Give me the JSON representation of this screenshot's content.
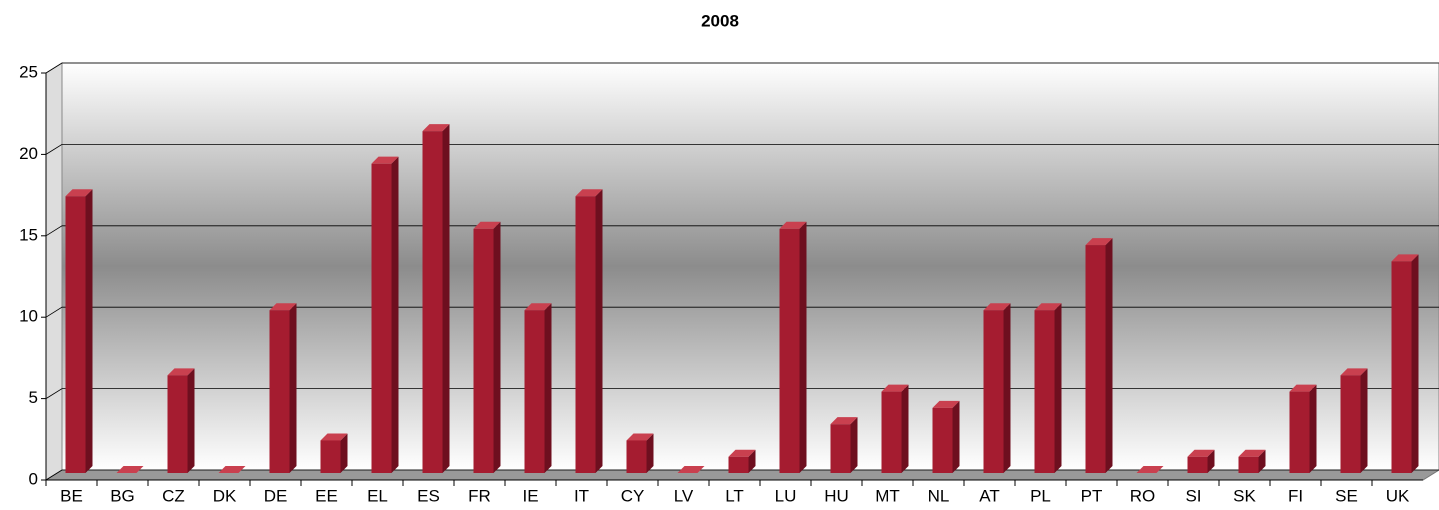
{
  "chart_data": {
    "type": "bar",
    "title": "2008",
    "categories": [
      "BE",
      "BG",
      "CZ",
      "DK",
      "DE",
      "EE",
      "EL",
      "ES",
      "FR",
      "IE",
      "IT",
      "CY",
      "LV",
      "LT",
      "LU",
      "HU",
      "MT",
      "NL",
      "AT",
      "PL",
      "PT",
      "RO",
      "SI",
      "SK",
      "FI",
      "SE",
      "UK"
    ],
    "values": [
      17,
      0,
      6,
      0,
      10,
      2,
      19,
      21,
      15,
      10,
      17,
      2,
      0,
      1,
      15,
      3,
      5,
      4,
      10,
      10,
      14,
      0,
      1,
      1,
      5,
      6,
      13
    ],
    "color": "#a51c30",
    "ylim": [
      0,
      25
    ],
    "yticks": [
      0,
      5,
      10,
      15,
      20,
      25
    ],
    "grid": true
  }
}
